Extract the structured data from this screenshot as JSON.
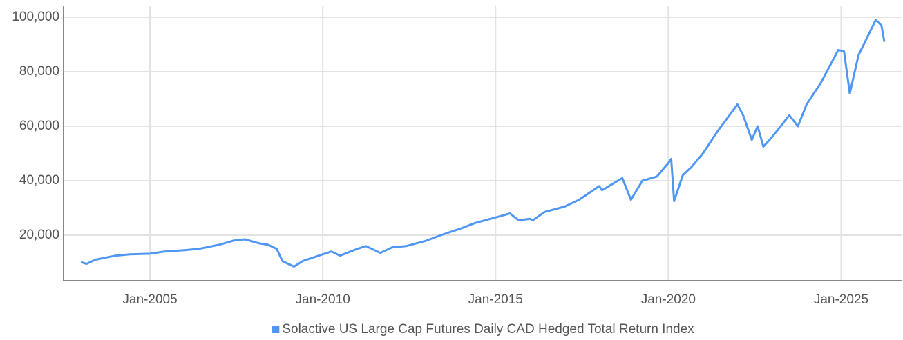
{
  "chart_data": {
    "type": "line",
    "x": [
      "2003-01",
      "2003-03",
      "2003-06",
      "2004-01",
      "2004-06",
      "2005-01",
      "2005-06",
      "2006-01",
      "2006-06",
      "2007-01",
      "2007-06",
      "2007-10",
      "2008-03",
      "2008-06",
      "2008-09",
      "2008-11",
      "2009-03",
      "2009-06",
      "2010-01",
      "2010-04",
      "2010-07",
      "2011-01",
      "2011-04",
      "2011-09",
      "2012-01",
      "2012-06",
      "2013-01",
      "2013-06",
      "2014-01",
      "2014-06",
      "2015-01",
      "2015-06",
      "2015-09",
      "2016-01",
      "2016-02",
      "2016-06",
      "2017-01",
      "2017-06",
      "2018-01",
      "2018-02",
      "2018-09",
      "2018-12",
      "2019-04",
      "2019-09",
      "2020-01",
      "2020-02",
      "2020-03",
      "2020-06",
      "2020-09",
      "2021-01",
      "2021-06",
      "2022-01",
      "2022-03",
      "2022-06",
      "2022-08",
      "2022-10",
      "2023-01",
      "2023-07",
      "2023-10",
      "2024-01",
      "2024-06",
      "2024-12",
      "2025-02",
      "2025-04",
      "2025-07",
      "2026-01",
      "2026-03",
      "2026-04"
    ],
    "series": [
      {
        "name": "Solactive US Large Cap Futures Daily CAD Hedged Total Return Index",
        "color": "#4f97f2",
        "values": [
          10100,
          9500,
          11000,
          12500,
          13000,
          13200,
          14000,
          14500,
          15000,
          16500,
          18000,
          18500,
          17000,
          16500,
          15000,
          10500,
          8500,
          10500,
          13000,
          14000,
          12500,
          15000,
          16000,
          13500,
          15500,
          16000,
          18000,
          20000,
          22500,
          24500,
          26500,
          28000,
          25500,
          26000,
          25500,
          28500,
          30500,
          33000,
          38000,
          36500,
          41000,
          33000,
          40000,
          41500,
          46500,
          48000,
          32500,
          42000,
          45000,
          50000,
          58000,
          68000,
          64000,
          55000,
          60000,
          52500,
          56000,
          64000,
          60000,
          68000,
          76000,
          88000,
          87500,
          72000,
          86000,
          99000,
          97000,
          91000
        ]
      }
    ],
    "xlim": [
      "2002-07",
      "2026-10"
    ],
    "xticks": [
      {
        "value": "2005-01",
        "label": "Jan-2005"
      },
      {
        "value": "2010-01",
        "label": "Jan-2010"
      },
      {
        "value": "2015-01",
        "label": "Jan-2015"
      },
      {
        "value": "2020-01",
        "label": "Jan-2020"
      },
      {
        "value": "2025-01",
        "label": "Jan-2025"
      }
    ],
    "ylim": [
      3300,
      104300
    ],
    "yticks": [
      {
        "value": 20000,
        "label": "20,000"
      },
      {
        "value": 40000,
        "label": "40,000"
      },
      {
        "value": 60000,
        "label": "60,000"
      },
      {
        "value": 80000,
        "label": "80,000"
      },
      {
        "value": 100000,
        "label": "100,000"
      }
    ],
    "grid": true,
    "legend": "bottom"
  }
}
